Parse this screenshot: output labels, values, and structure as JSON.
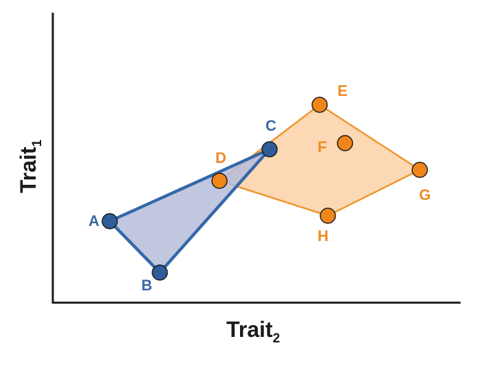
{
  "axes": {
    "x_label": {
      "text": "Trait",
      "subscript": "2"
    },
    "y_label": {
      "text": "Trait",
      "subscript": "1"
    }
  },
  "colors": {
    "axis": "#1a1a1a",
    "blue_fill": "#b5bdd9",
    "blue_stroke": "#3468a8",
    "blue_point": "#2e5d9a",
    "blue_label": "#3a69a6",
    "orange_fill": "#fcd8b4",
    "orange_stroke": "#f0952e",
    "orange_point": "#f0861a",
    "orange_label": "#ef8a23"
  },
  "groups": [
    {
      "name": "blue",
      "hull": [
        "A",
        "B",
        "C"
      ],
      "points": [
        {
          "label": "A"
        },
        {
          "label": "B"
        },
        {
          "label": "C"
        }
      ]
    },
    {
      "name": "orange",
      "hull": [
        "D",
        "E",
        "G",
        "H"
      ],
      "points": [
        {
          "label": "D"
        },
        {
          "label": "E"
        },
        {
          "label": "F"
        },
        {
          "label": "G"
        },
        {
          "label": "H"
        }
      ]
    }
  ]
}
